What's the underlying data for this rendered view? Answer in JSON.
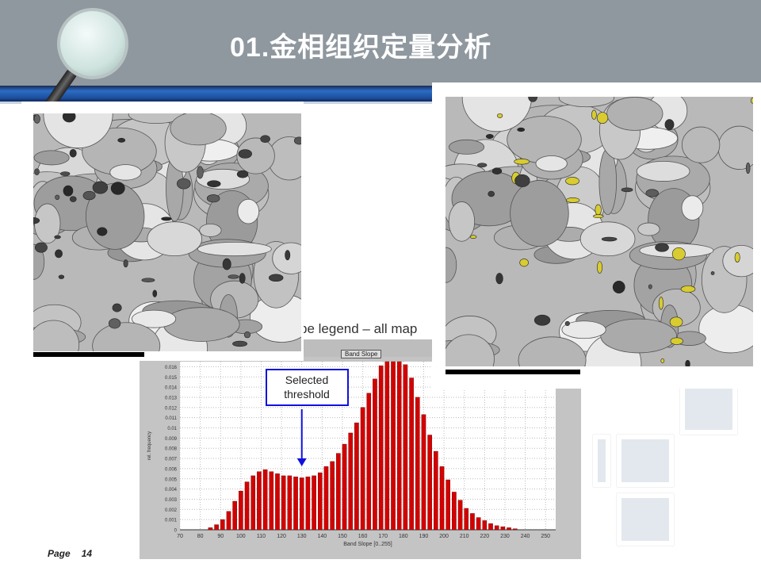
{
  "header": {
    "title": "01.金相组织定量分析"
  },
  "footer": {
    "page_label": "Page",
    "page_number": "14"
  },
  "chart_header": {
    "legend_title": "pe legend – all map",
    "band_slope_button": "Band Slope"
  },
  "annotation": {
    "text_line1": "Selected",
    "text_line2": "threshold",
    "points_to_x": 130,
    "color": "#1010e0"
  },
  "chart_data": {
    "type": "bar",
    "xlabel": "Band Slope [0..255]",
    "ylabel": "rel. frequency",
    "xlim": [
      70,
      255
    ],
    "ylim": [
      0,
      0.0165
    ],
    "grid": true,
    "bar_color": "#d40000",
    "x_ticks": [
      "70",
      "80",
      "90",
      "100",
      "110",
      "120",
      "130",
      "140",
      "150",
      "160",
      "170",
      "180",
      "190",
      "200",
      "210",
      "220",
      "230",
      "240",
      "250"
    ],
    "y_ticks": [
      "0",
      "0.001",
      "0.002",
      "0.003",
      "0.004",
      "0.005",
      "0.006",
      "0.007",
      "0.008",
      "0.009",
      "0.01",
      "0.011",
      "0.012",
      "0.013",
      "0.014",
      "0.015",
      "0.016"
    ],
    "x": [
      85,
      88,
      91,
      94,
      97,
      100,
      103,
      106,
      109,
      112,
      115,
      118,
      121,
      124,
      127,
      130,
      133,
      136,
      139,
      142,
      145,
      148,
      151,
      154,
      157,
      160,
      163,
      166,
      169,
      172,
      175,
      178,
      181,
      184,
      187,
      190,
      193,
      196,
      199,
      202,
      205,
      208,
      211,
      214,
      217,
      220,
      223,
      226,
      229,
      232,
      235
    ],
    "values": [
      0.0002,
      0.0005,
      0.001,
      0.0018,
      0.0028,
      0.0038,
      0.0047,
      0.0053,
      0.0057,
      0.0059,
      0.0057,
      0.0055,
      0.0053,
      0.0053,
      0.0052,
      0.0051,
      0.0052,
      0.0053,
      0.0056,
      0.0062,
      0.0067,
      0.0075,
      0.0084,
      0.0095,
      0.0105,
      0.012,
      0.0134,
      0.0148,
      0.0161,
      0.0169,
      0.0171,
      0.0169,
      0.0162,
      0.0149,
      0.013,
      0.0113,
      0.0093,
      0.0077,
      0.0062,
      0.0049,
      0.0037,
      0.0029,
      0.0021,
      0.0016,
      0.0012,
      0.0009,
      0.0006,
      0.0004,
      0.0003,
      0.0002,
      0.0001
    ]
  }
}
